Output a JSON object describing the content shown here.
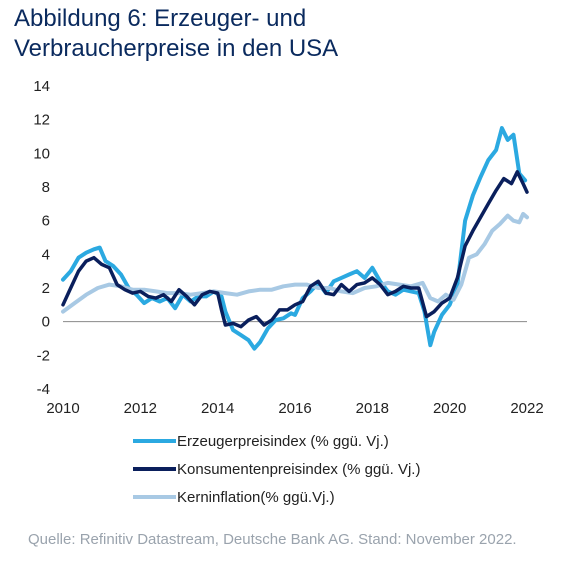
{
  "header": {
    "title_line1": "Abbildung 6: Erzeuger- und",
    "title_line2": "Verbraucherpreise in den USA"
  },
  "footer": {
    "source": "Quelle: Refinitiv Datastream, Deutsche Bank AG. Stand: November 2022."
  },
  "colors": {
    "ppi": "#2ba9e1",
    "cpi": "#0a1f5c",
    "core": "#a8c9e4",
    "title": "#0a2a5e",
    "source": "#9aa3ad"
  },
  "chart_data": {
    "type": "line",
    "title": "Abbildung 6: Erzeuger- und Verbraucherpreise in den USA",
    "xlabel": "",
    "ylabel": "",
    "xlim": [
      2010,
      2022
    ],
    "ylim": [
      -4,
      14
    ],
    "x_ticks": [
      "2010",
      "2012",
      "2014",
      "2016",
      "2018",
      "2020",
      "2022"
    ],
    "y_ticks": [
      "14",
      "12",
      "10",
      "8",
      "6",
      "4",
      "2",
      "0",
      "-2",
      "-4"
    ],
    "grid": false,
    "legend_position": "bottom",
    "series": [
      {
        "name": "Erzeugerpreisindex (% ggü. Vj.)",
        "color": "#2ba9e1",
        "points": [
          [
            2010.0,
            2.5
          ],
          [
            2010.2,
            3.0
          ],
          [
            2010.4,
            3.8
          ],
          [
            2010.6,
            4.1
          ],
          [
            2010.8,
            4.3
          ],
          [
            2010.95,
            4.4
          ],
          [
            2011.1,
            3.6
          ],
          [
            2011.3,
            3.3
          ],
          [
            2011.5,
            2.8
          ],
          [
            2011.7,
            2.0
          ],
          [
            2011.9,
            1.6
          ],
          [
            2012.1,
            1.1
          ],
          [
            2012.3,
            1.4
          ],
          [
            2012.5,
            1.2
          ],
          [
            2012.7,
            1.4
          ],
          [
            2012.9,
            0.8
          ],
          [
            2013.1,
            1.6
          ],
          [
            2013.3,
            1.2
          ],
          [
            2013.5,
            1.5
          ],
          [
            2013.7,
            1.5
          ],
          [
            2013.9,
            1.8
          ],
          [
            2014.1,
            1.5
          ],
          [
            2014.2,
            0.6
          ],
          [
            2014.4,
            -0.5
          ],
          [
            2014.6,
            -0.8
          ],
          [
            2014.8,
            -1.1
          ],
          [
            2014.95,
            -1.6
          ],
          [
            2015.1,
            -1.2
          ],
          [
            2015.3,
            -0.4
          ],
          [
            2015.5,
            0.1
          ],
          [
            2015.7,
            0.2
          ],
          [
            2015.9,
            0.5
          ],
          [
            2016.0,
            0.4
          ],
          [
            2016.2,
            1.4
          ],
          [
            2016.4,
            1.8
          ],
          [
            2016.6,
            2.3
          ],
          [
            2016.8,
            1.7
          ],
          [
            2017.0,
            2.4
          ],
          [
            2017.2,
            2.6
          ],
          [
            2017.4,
            2.8
          ],
          [
            2017.6,
            3.0
          ],
          [
            2017.8,
            2.6
          ],
          [
            2018.0,
            3.2
          ],
          [
            2018.2,
            2.4
          ],
          [
            2018.4,
            1.8
          ],
          [
            2018.6,
            1.6
          ],
          [
            2018.8,
            1.9
          ],
          [
            2019.0,
            1.8
          ],
          [
            2019.2,
            1.7
          ],
          [
            2019.35,
            0.6
          ],
          [
            2019.5,
            -1.4
          ],
          [
            2019.6,
            -0.6
          ],
          [
            2019.8,
            0.4
          ],
          [
            2020.0,
            1.0
          ],
          [
            2020.2,
            2.2
          ],
          [
            2020.4,
            6.0
          ],
          [
            2020.6,
            7.5
          ],
          [
            2020.8,
            8.6
          ],
          [
            2021.0,
            9.6
          ],
          [
            2021.2,
            10.2
          ],
          [
            2021.35,
            11.5
          ],
          [
            2021.5,
            10.8
          ],
          [
            2021.65,
            11.1
          ],
          [
            2021.8,
            8.8
          ],
          [
            2021.95,
            8.4
          ]
        ]
      },
      {
        "name": "Konsumentenpreisindex (% ggü. Vj.)",
        "color": "#0a1f5c",
        "points": [
          [
            2010.0,
            1.0
          ],
          [
            2010.2,
            2.0
          ],
          [
            2010.4,
            3.0
          ],
          [
            2010.6,
            3.6
          ],
          [
            2010.8,
            3.8
          ],
          [
            2011.0,
            3.4
          ],
          [
            2011.2,
            3.2
          ],
          [
            2011.4,
            2.2
          ],
          [
            2011.6,
            1.9
          ],
          [
            2011.8,
            1.7
          ],
          [
            2012.0,
            1.8
          ],
          [
            2012.2,
            1.5
          ],
          [
            2012.4,
            1.4
          ],
          [
            2012.6,
            1.6
          ],
          [
            2012.8,
            1.2
          ],
          [
            2013.0,
            1.9
          ],
          [
            2013.2,
            1.5
          ],
          [
            2013.4,
            1.0
          ],
          [
            2013.6,
            1.6
          ],
          [
            2013.8,
            1.8
          ],
          [
            2014.0,
            1.7
          ],
          [
            2014.1,
            0.7
          ],
          [
            2014.2,
            -0.2
          ],
          [
            2014.4,
            -0.1
          ],
          [
            2014.6,
            -0.3
          ],
          [
            2014.8,
            0.1
          ],
          [
            2015.0,
            0.3
          ],
          [
            2015.2,
            -0.2
          ],
          [
            2015.4,
            0.1
          ],
          [
            2015.6,
            0.7
          ],
          [
            2015.8,
            0.7
          ],
          [
            2016.0,
            1.0
          ],
          [
            2016.2,
            1.2
          ],
          [
            2016.4,
            2.1
          ],
          [
            2016.6,
            2.4
          ],
          [
            2016.8,
            1.7
          ],
          [
            2017.0,
            1.6
          ],
          [
            2017.2,
            2.2
          ],
          [
            2017.4,
            1.8
          ],
          [
            2017.6,
            2.2
          ],
          [
            2017.8,
            2.3
          ],
          [
            2018.0,
            2.6
          ],
          [
            2018.2,
            2.2
          ],
          [
            2018.4,
            1.6
          ],
          [
            2018.6,
            1.8
          ],
          [
            2018.8,
            2.1
          ],
          [
            2019.0,
            2.0
          ],
          [
            2019.2,
            2.0
          ],
          [
            2019.4,
            0.3
          ],
          [
            2019.6,
            0.6
          ],
          [
            2019.8,
            1.1
          ],
          [
            2020.0,
            1.4
          ],
          [
            2020.2,
            2.6
          ],
          [
            2020.4,
            4.5
          ],
          [
            2020.6,
            5.4
          ],
          [
            2020.8,
            6.2
          ],
          [
            2021.0,
            7.0
          ],
          [
            2021.2,
            7.8
          ],
          [
            2021.4,
            8.5
          ],
          [
            2021.6,
            8.2
          ],
          [
            2021.75,
            8.9
          ],
          [
            2021.9,
            8.2
          ],
          [
            2022.0,
            7.7
          ]
        ]
      },
      {
        "name": "Kerninflation(% ggü.Vj.)",
        "color": "#a8c9e4",
        "points": [
          [
            2010.0,
            0.6
          ],
          [
            2010.3,
            1.1
          ],
          [
            2010.6,
            1.6
          ],
          [
            2010.9,
            2.0
          ],
          [
            2011.2,
            2.2
          ],
          [
            2011.5,
            2.1
          ],
          [
            2011.8,
            1.9
          ],
          [
            2012.1,
            1.9
          ],
          [
            2012.4,
            1.8
          ],
          [
            2012.7,
            1.7
          ],
          [
            2013.0,
            1.7
          ],
          [
            2013.3,
            1.6
          ],
          [
            2013.6,
            1.7
          ],
          [
            2013.9,
            1.8
          ],
          [
            2014.2,
            1.7
          ],
          [
            2014.5,
            1.6
          ],
          [
            2014.8,
            1.8
          ],
          [
            2015.1,
            1.9
          ],
          [
            2015.4,
            1.9
          ],
          [
            2015.7,
            2.1
          ],
          [
            2016.0,
            2.2
          ],
          [
            2016.3,
            2.2
          ],
          [
            2016.6,
            2.0
          ],
          [
            2016.9,
            2.0
          ],
          [
            2017.2,
            1.8
          ],
          [
            2017.5,
            1.7
          ],
          [
            2017.8,
            2.0
          ],
          [
            2018.1,
            2.1
          ],
          [
            2018.4,
            2.3
          ],
          [
            2018.7,
            2.2
          ],
          [
            2019.0,
            2.1
          ],
          [
            2019.3,
            2.3
          ],
          [
            2019.5,
            1.4
          ],
          [
            2019.7,
            1.2
          ],
          [
            2019.9,
            1.6
          ],
          [
            2020.1,
            1.3
          ],
          [
            2020.3,
            2.2
          ],
          [
            2020.5,
            3.8
          ],
          [
            2020.7,
            4.0
          ],
          [
            2020.9,
            4.6
          ],
          [
            2021.1,
            5.4
          ],
          [
            2021.3,
            5.8
          ],
          [
            2021.5,
            6.3
          ],
          [
            2021.65,
            6.0
          ],
          [
            2021.8,
            5.9
          ],
          [
            2021.9,
            6.4
          ],
          [
            2022.0,
            6.2
          ]
        ]
      }
    ]
  }
}
